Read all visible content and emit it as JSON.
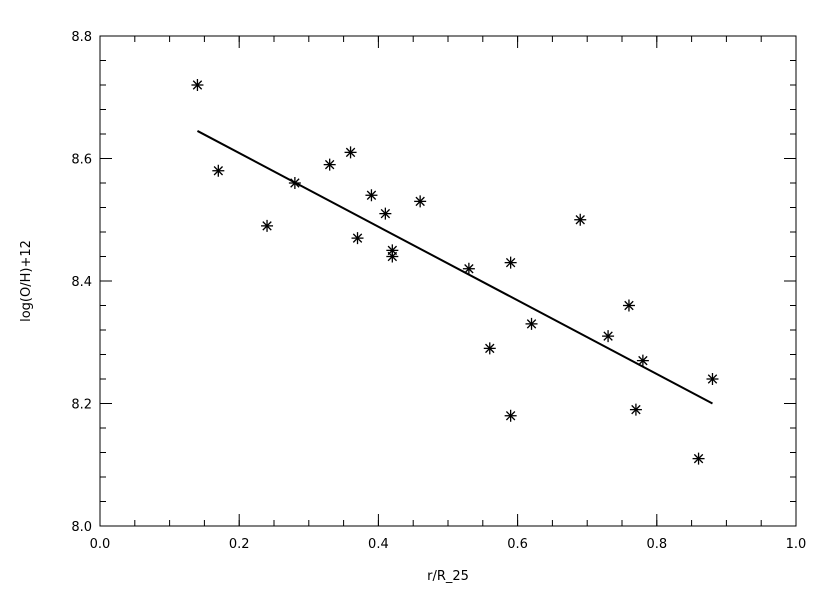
{
  "chart_data": {
    "type": "scatter",
    "xlabel": "r/R_25",
    "ylabel": "log(O/H)+12",
    "xlim": [
      0.0,
      1.0
    ],
    "ylim": [
      8.0,
      8.8
    ],
    "x_ticks": [
      "0.0",
      "0.2",
      "0.4",
      "0.6",
      "0.8",
      "1.0"
    ],
    "y_ticks": [
      "8.0",
      "8.2",
      "8.4",
      "8.6",
      "8.8"
    ],
    "x_tick_values": [
      0.0,
      0.2,
      0.4,
      0.6,
      0.8,
      1.0
    ],
    "y_tick_values": [
      8.0,
      8.2,
      8.4,
      8.6,
      8.8
    ],
    "x_minor_step": 0.05,
    "y_minor_step": 0.04,
    "grid": false,
    "marker": "asterisk",
    "points": [
      {
        "x": 0.14,
        "y": 8.72
      },
      {
        "x": 0.17,
        "y": 8.58
      },
      {
        "x": 0.24,
        "y": 8.49
      },
      {
        "x": 0.28,
        "y": 8.56
      },
      {
        "x": 0.33,
        "y": 8.59
      },
      {
        "x": 0.36,
        "y": 8.61
      },
      {
        "x": 0.37,
        "y": 8.47
      },
      {
        "x": 0.39,
        "y": 8.54
      },
      {
        "x": 0.41,
        "y": 8.51
      },
      {
        "x": 0.42,
        "y": 8.45
      },
      {
        "x": 0.42,
        "y": 8.44
      },
      {
        "x": 0.46,
        "y": 8.53
      },
      {
        "x": 0.53,
        "y": 8.42
      },
      {
        "x": 0.56,
        "y": 8.29
      },
      {
        "x": 0.59,
        "y": 8.43
      },
      {
        "x": 0.59,
        "y": 8.18
      },
      {
        "x": 0.62,
        "y": 8.33
      },
      {
        "x": 0.69,
        "y": 8.5
      },
      {
        "x": 0.73,
        "y": 8.31
      },
      {
        "x": 0.76,
        "y": 8.36
      },
      {
        "x": 0.77,
        "y": 8.19
      },
      {
        "x": 0.78,
        "y": 8.27
      },
      {
        "x": 0.86,
        "y": 8.11
      },
      {
        "x": 0.88,
        "y": 8.24
      }
    ],
    "fit_line": {
      "x": [
        0.14,
        0.88
      ],
      "y": [
        8.645,
        8.2
      ]
    }
  }
}
